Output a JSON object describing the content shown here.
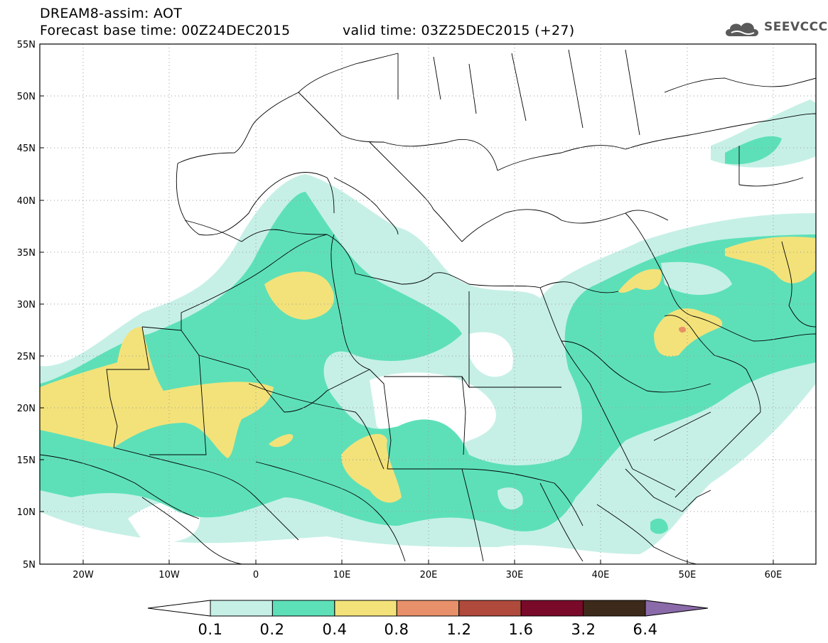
{
  "header": {
    "title": "DREAM8-assim: AOT",
    "base_time": "Forecast base time: 00Z24DEC2015",
    "valid_time": "valid time: 03Z25DEC2015 (+27)"
  },
  "logo": {
    "text": "SEEVCCC",
    "icon": "cloud-icon"
  },
  "map": {
    "lat_ticks": [
      "55N",
      "50N",
      "45N",
      "40N",
      "35N",
      "30N",
      "25N",
      "20N",
      "15N",
      "10N",
      "5N"
    ],
    "lon_ticks": [
      "20W",
      "10W",
      "0",
      "10E",
      "20E",
      "30E",
      "40E",
      "50E",
      "60E"
    ],
    "lat_range": [
      5,
      55
    ],
    "lon_range": [
      -25,
      65
    ],
    "field": "AOT"
  },
  "colorbar": {
    "labels": [
      "0.1",
      "0.2",
      "0.4",
      "0.8",
      "1.2",
      "1.6",
      "3.2",
      "6.4"
    ],
    "colors": [
      "#c6f0e6",
      "#5de0b8",
      "#f3e27a",
      "#e8906a",
      "#b04a3c",
      "#7a0a2a",
      "#3d2a1a",
      "#8a6aa8"
    ],
    "under_color": "#ffffff"
  }
}
